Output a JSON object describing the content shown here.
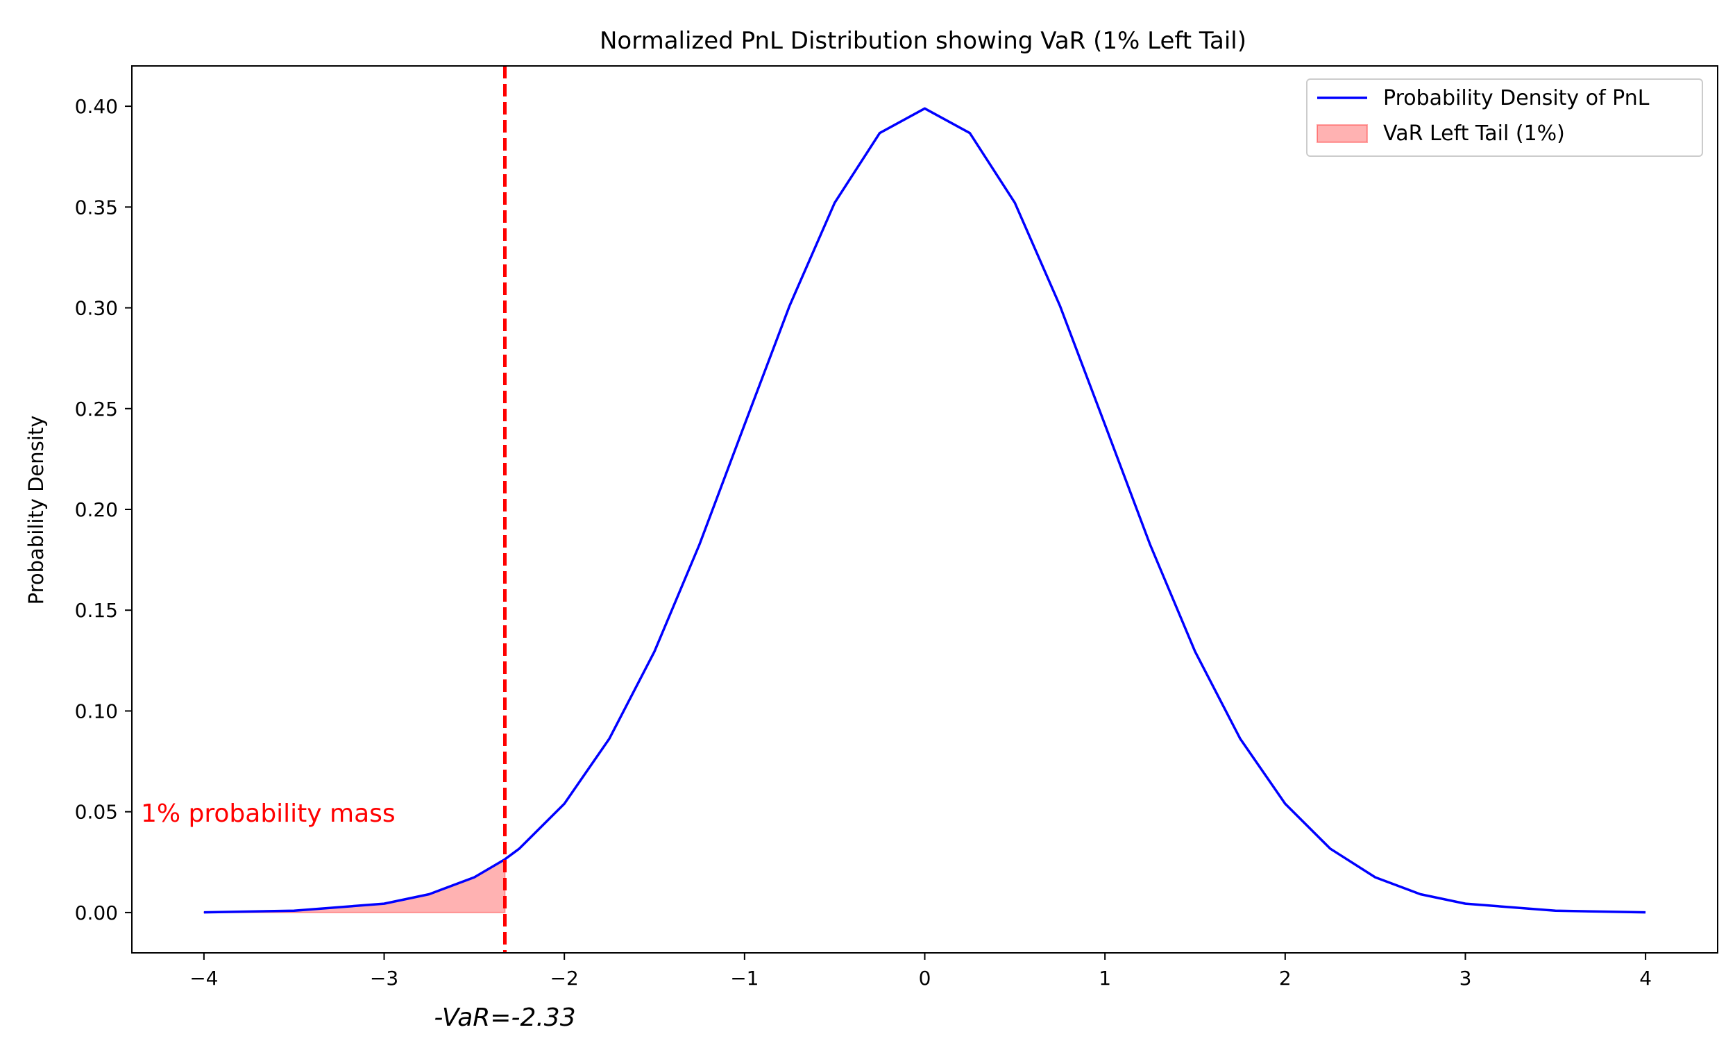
{
  "chart_data": {
    "type": "line",
    "title": "Normalized PnL Distribution showing VaR (1% Left Tail)",
    "xlabel": "",
    "ylabel": "Probability Density",
    "xlim": [
      -4.4,
      4.4
    ],
    "ylim": [
      -0.02,
      0.42
    ],
    "x_ticks": [
      -4,
      -3,
      -2,
      -1,
      0,
      1,
      2,
      3,
      4
    ],
    "x_tick_labels": [
      "−4",
      "−3",
      "−2",
      "−1",
      "0",
      "1",
      "2",
      "3",
      "4"
    ],
    "y_ticks": [
      0.0,
      0.05,
      0.1,
      0.15,
      0.2,
      0.25,
      0.3,
      0.35,
      0.4
    ],
    "y_tick_labels": [
      "0.00",
      "0.05",
      "0.10",
      "0.15",
      "0.20",
      "0.25",
      "0.30",
      "0.35",
      "0.40"
    ],
    "grid": false,
    "legend_position": "top-right",
    "series": [
      {
        "name": "Probability Density of PnL",
        "color": "#0000ff",
        "x": [
          -4.0,
          -3.5,
          -3.0,
          -2.75,
          -2.5,
          -2.33,
          -2.25,
          -2.0,
          -1.75,
          -1.5,
          -1.25,
          -1.0,
          -0.75,
          -0.5,
          -0.25,
          0.0,
          0.25,
          0.5,
          0.75,
          1.0,
          1.25,
          1.5,
          1.75,
          2.0,
          2.25,
          2.5,
          2.75,
          3.0,
          3.5,
          4.0
        ],
        "y": [
          0.0001,
          0.0009,
          0.0044,
          0.0091,
          0.0175,
          0.0264,
          0.0317,
          0.054,
          0.0863,
          0.1295,
          0.1826,
          0.242,
          0.3011,
          0.3521,
          0.3867,
          0.3989,
          0.3867,
          0.3521,
          0.3011,
          0.242,
          0.1826,
          0.1295,
          0.0863,
          0.054,
          0.0317,
          0.0175,
          0.0091,
          0.0044,
          0.0009,
          0.0001
        ]
      }
    ],
    "fill": {
      "name": "VaR Left Tail (1%)",
      "color": "#ff0000",
      "opacity": 0.3,
      "x_from": -4.0,
      "x_to": -2.33
    },
    "var_line": {
      "x": -2.33,
      "color": "#ff0000",
      "style": "dashed"
    },
    "annotations": [
      {
        "text": "1% probability mass",
        "x": -4.35,
        "y": 0.045,
        "color": "#ff0000",
        "style": "normal"
      },
      {
        "text": "-VaR=-2.33",
        "x": -2.33,
        "y": -0.05,
        "color": "#000000",
        "style": "italic"
      }
    ]
  }
}
